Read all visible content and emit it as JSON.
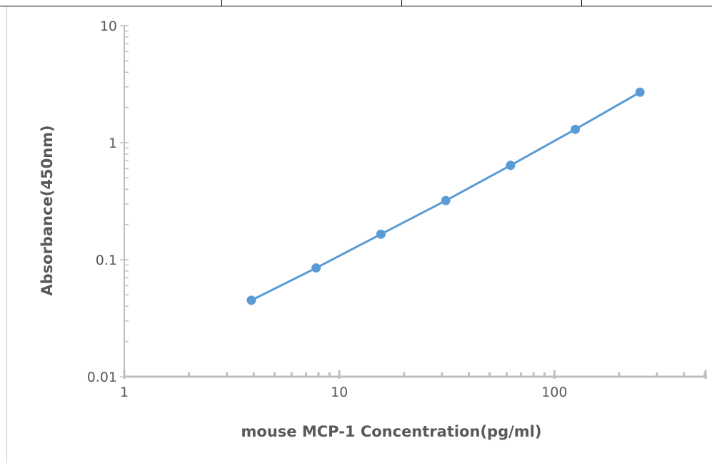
{
  "chart_data": {
    "type": "line",
    "title": "",
    "xlabel": "mouse MCP-1 Concentration(pg/ml)",
    "ylabel": "Absorbance(450nm)",
    "x_scale": "log",
    "y_scale": "log",
    "xlim": [
      1,
      500
    ],
    "ylim": [
      0.01,
      10
    ],
    "x_ticks": [
      {
        "value": 1,
        "label": "1"
      },
      {
        "value": 10,
        "label": "10"
      },
      {
        "value": 100,
        "label": "100"
      }
    ],
    "y_ticks": [
      {
        "value": 0.01,
        "label": "0.01"
      },
      {
        "value": 0.1,
        "label": "0.1"
      },
      {
        "value": 1,
        "label": "1"
      },
      {
        "value": 10,
        "label": "10"
      }
    ],
    "grid": false,
    "legend": "none",
    "series": [
      {
        "color": "#5b9bd5",
        "marker": "circle",
        "x": [
          3.9,
          7.8,
          15.6,
          31.25,
          62.5,
          125,
          250
        ],
        "y": [
          0.045,
          0.085,
          0.165,
          0.32,
          0.64,
          1.3,
          2.7
        ]
      }
    ]
  }
}
